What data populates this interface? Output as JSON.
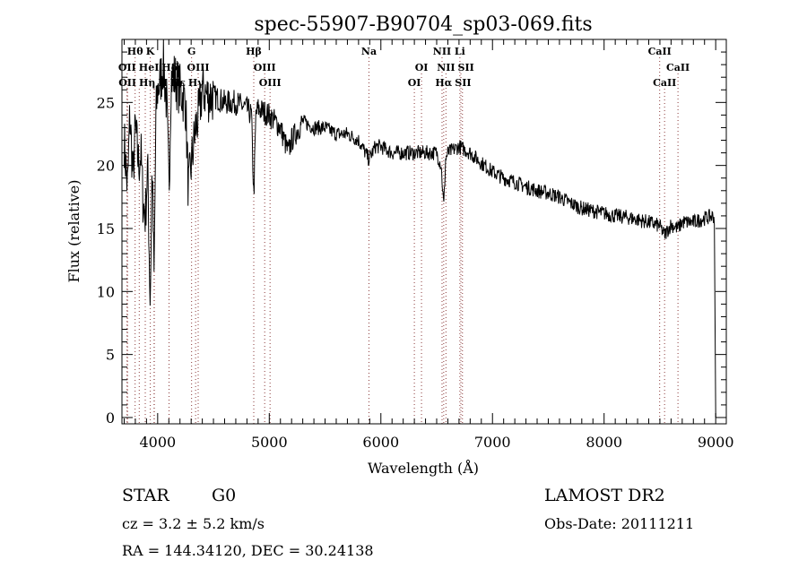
{
  "chart_data": {
    "type": "line",
    "title": "spec-55907-B90704_sp03-069.fits",
    "xlabel": "Wavelength (Å)",
    "ylabel": "Flux (relative)",
    "xlim": [
      3680,
      9095
    ],
    "ylim": [
      -0.5,
      30
    ],
    "xticks": [
      4000,
      5000,
      6000,
      7000,
      8000,
      9000
    ],
    "yticks": [
      0,
      5,
      10,
      15,
      20,
      25
    ],
    "grid": false,
    "series": [
      {
        "name": "flux",
        "x": [
          3700,
          3730,
          3750,
          3780,
          3800,
          3830,
          3850,
          3870,
          3890,
          3910,
          3933,
          3950,
          3968,
          3985,
          4000,
          4030,
          4050,
          4080,
          4102,
          4120,
          4150,
          4200,
          4250,
          4275,
          4300,
          4340,
          4370,
          4400,
          4450,
          4500,
          4600,
          4700,
          4800,
          4840,
          4861,
          4880,
          4900,
          5000,
          5100,
          5170,
          5200,
          5300,
          5400,
          5500,
          5600,
          5700,
          5800,
          5893,
          5950,
          6000,
          6100,
          6200,
          6300,
          6400,
          6500,
          6540,
          6563,
          6580,
          6600,
          6700,
          6800,
          6900,
          7000,
          7100,
          7200,
          7300,
          7400,
          7500,
          7600,
          7700,
          7800,
          7900,
          8000,
          8100,
          8200,
          8300,
          8400,
          8498,
          8542,
          8600,
          8662,
          8700,
          8800,
          8900,
          8980,
          8990,
          9000
        ],
        "y": [
          22,
          18,
          24,
          19,
          23,
          20,
          21,
          17,
          16,
          20,
          9,
          20,
          11,
          24,
          26,
          27,
          28,
          25,
          18,
          27,
          27,
          26,
          25,
          18,
          20,
          23,
          24,
          26,
          25.5,
          25.5,
          25,
          25,
          24.5,
          24,
          17.5,
          24,
          24.5,
          24,
          23,
          21,
          22,
          23.5,
          23,
          23,
          22.5,
          22.5,
          22,
          20.5,
          21.5,
          21.5,
          21,
          21,
          21,
          21,
          21,
          20,
          16.7,
          20.5,
          21,
          21.5,
          21,
          20.2,
          19.5,
          19,
          18.7,
          18.3,
          18,
          17.8,
          17.5,
          17,
          16.6,
          16.4,
          16.2,
          16,
          15.9,
          15.7,
          15.5,
          15.2,
          14.5,
          15.3,
          15,
          15.5,
          15.5,
          15.8,
          16,
          15.5,
          0
        ]
      }
    ],
    "lines": [
      {
        "label": "Hθ",
        "wave": 3798,
        "row": 0
      },
      {
        "label": "K",
        "wave": 3934,
        "row": 0
      },
      {
        "label": "G",
        "wave": 4304,
        "row": 0
      },
      {
        "label": "Hβ",
        "wave": 4861,
        "row": 0
      },
      {
        "label": "Na",
        "wave": 5893,
        "row": 0
      },
      {
        "label": "NII",
        "wave": 6548,
        "row": 0
      },
      {
        "label": "Li",
        "wave": 6708,
        "row": 0
      },
      {
        "label": "CaII",
        "wave": 8498,
        "row": 0
      },
      {
        "label": "OII",
        "wave": 3727,
        "row": 1
      },
      {
        "label": "HeI",
        "wave": 3889,
        "row": 1
      },
      {
        "label": "Hδ",
        "wave": 4102,
        "row": 1
      },
      {
        "label": "OIII",
        "wave": 4363,
        "row": 1
      },
      {
        "label": "OIII",
        "wave": 4959,
        "row": 1
      },
      {
        "label": "OI",
        "wave": 6364,
        "row": 1
      },
      {
        "label": "NII",
        "wave": 6583,
        "row": 1
      },
      {
        "label": "SII",
        "wave": 6717,
        "row": 1
      },
      {
        "label": "CaII",
        "wave": 8662,
        "row": 1
      },
      {
        "label": "OII",
        "wave": 3729,
        "row": 2
      },
      {
        "label": "Hη",
        "wave": 3835,
        "row": 2
      },
      {
        "label": "H",
        "wave": 3968,
        "row": 2
      },
      {
        "label": "Hε",
        "wave": 3970,
        "row": 2
      },
      {
        "label": "Hγ",
        "wave": 4340,
        "row": 2
      },
      {
        "label": "OIII",
        "wave": 5007,
        "row": 2
      },
      {
        "label": "OI",
        "wave": 6300,
        "row": 2
      },
      {
        "label": "Hα",
        "wave": 6563,
        "row": 2
      },
      {
        "label": "SII",
        "wave": 6731,
        "row": 2
      },
      {
        "label": "CaII",
        "wave": 8542,
        "row": 2
      }
    ]
  },
  "info": {
    "class": "STAR",
    "subclass": "G0",
    "cz": "cz = 3.2 ± 5.2 km/s",
    "coords": "RA = 144.34120, DEC =  30.24138",
    "survey": "LAMOST DR2",
    "obs_date": "Obs-Date: 20111211"
  }
}
